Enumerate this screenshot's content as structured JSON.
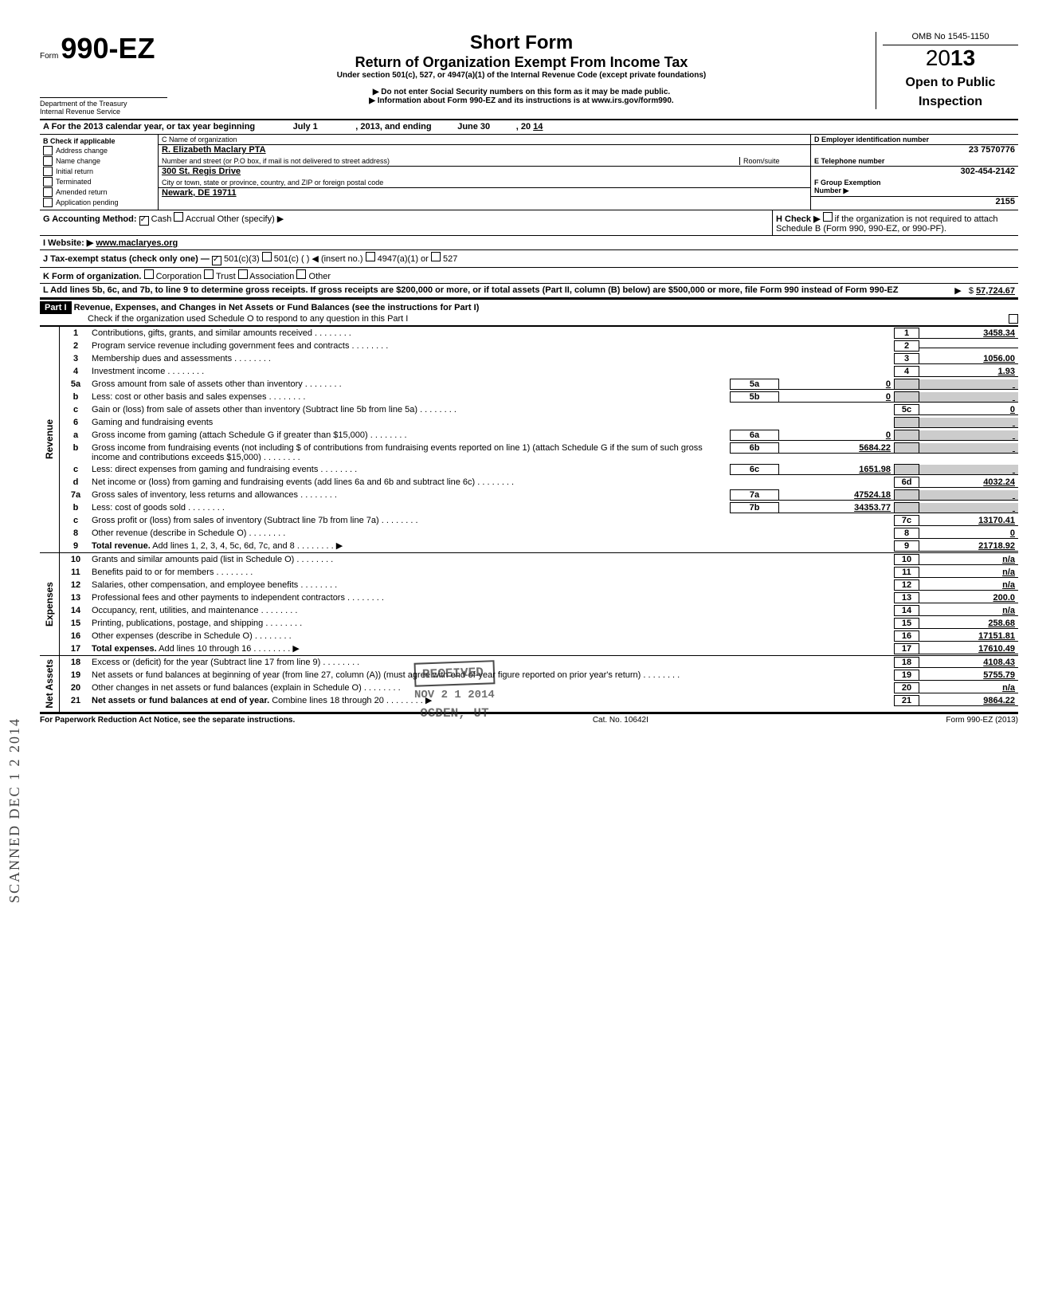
{
  "header": {
    "form_prefix": "Form",
    "form_number": "990-EZ",
    "title": "Short Form",
    "subtitle": "Return of Organization Exempt From Income Tax",
    "under": "Under section 501(c), 527, or 4947(a)(1) of the Internal Revenue Code (except private foundations)",
    "note1": "Do not enter Social Security numbers on this form as it may be made public.",
    "note2": "Information about Form 990-EZ and its instructions is at www.irs.gov/form990.",
    "dept": "Department of the Treasury\nInternal Revenue Service",
    "omb": "OMB No 1545-1150",
    "year_prefix": "20",
    "year_bold": "13",
    "open": "Open to Public",
    "inspection": "Inspection"
  },
  "A": {
    "label": "A For the 2013 calendar year, or tax year beginning",
    "begin": "July 1",
    "mid": ", 2013, and ending",
    "end_month": "June 30",
    "end_year_prefix": ", 20",
    "end_year": "14"
  },
  "B": {
    "label": "B  Check if applicable",
    "items": [
      "Address change",
      "Name change",
      "Initial return",
      "Terminated",
      "Amended return",
      "Application pending"
    ]
  },
  "C": {
    "name_label": "C Name of organization",
    "name": "R. Elizabeth Maclary PTA",
    "street_label": "Number and street (or P.O box, if mail is not delivered to street address)",
    "room_label": "Room/suite",
    "street": "300 St. Regis Drive",
    "city_label": "City or town, state or province, country, and ZIP or foreign postal code",
    "city": "Newark, DE 19711"
  },
  "D": {
    "label": "D Employer identification number",
    "value": "23 7570776"
  },
  "E": {
    "label": "E Telephone number",
    "value": "302-454-2142"
  },
  "F": {
    "label": "F Group Exemption",
    "number_label": "Number ▶",
    "value": "2155"
  },
  "G": {
    "label": "G Accounting Method:",
    "cash": "Cash",
    "accrual": "Accrual",
    "other": "Other (specify) ▶"
  },
  "H": {
    "label": "H Check ▶",
    "text": "if the organization is not required to attach Schedule B (Form 990, 990-EZ, or 990-PF)."
  },
  "I": {
    "label": "I  Website: ▶",
    "value": "www.maclaryes.org"
  },
  "J": {
    "label": "J Tax-exempt status (check only one) —",
    "opt1": "501(c)(3)",
    "opt2": "501(c) (",
    "insert": ") ◀ (insert no.)",
    "opt3": "4947(a)(1) or",
    "opt4": "527"
  },
  "K": {
    "label": "K Form of organization.",
    "corp": "Corporation",
    "trust": "Trust",
    "assoc": "Association",
    "other": "Other"
  },
  "L": {
    "text": "L Add lines 5b, 6c, and 7b, to line 9 to determine gross receipts. If gross receipts are $200,000 or more, or if total assets (Part II, column (B) below) are $500,000 or more, file Form 990 instead of Form 990-EZ",
    "value": "57,724.67"
  },
  "part1": {
    "label": "Part I",
    "title": "Revenue, Expenses, and Changes in Net Assets or Fund Balances (see the instructions for Part I)",
    "check": "Check if the organization used Schedule O to respond to any question in this Part I"
  },
  "revenue_label": "Revenue",
  "expenses_label": "Expenses",
  "netassets_label": "Net Assets",
  "lines": {
    "l1": {
      "n": "1",
      "label": "Contributions, gifts, grants, and similar amounts received",
      "box": "1",
      "val": "3458.34"
    },
    "l2": {
      "n": "2",
      "label": "Program service revenue including government fees and contracts",
      "box": "2",
      "val": ""
    },
    "l3": {
      "n": "3",
      "label": "Membership dues and assessments",
      "box": "3",
      "val": "1056.00"
    },
    "l4": {
      "n": "4",
      "label": "Investment income",
      "box": "4",
      "val": "1.93"
    },
    "l5a": {
      "n": "5a",
      "label": "Gross amount from sale of assets other than inventory",
      "sub": "5a",
      "subval": "0"
    },
    "l5b": {
      "n": "b",
      "label": "Less: cost or other basis and sales expenses",
      "sub": "5b",
      "subval": "0"
    },
    "l5c": {
      "n": "c",
      "label": "Gain or (loss) from sale of assets other than inventory (Subtract line 5b from line 5a)",
      "box": "5c",
      "val": "0"
    },
    "l6": {
      "n": "6",
      "label": "Gaming and fundraising events"
    },
    "l6a": {
      "n": "a",
      "label": "Gross income from gaming (attach Schedule G if greater than $15,000)",
      "sub": "6a",
      "subval": "0"
    },
    "l6b": {
      "n": "b",
      "label": "Gross income from fundraising events (not including  $",
      "label2": "of contributions from fundraising events reported on line 1) (attach Schedule G if the sum of such gross income and contributions exceeds $15,000)",
      "sub": "6b",
      "subval": "5684.22"
    },
    "l6c": {
      "n": "c",
      "label": "Less: direct expenses from gaming and fundraising events",
      "sub": "6c",
      "subval": "1651.98"
    },
    "l6d": {
      "n": "d",
      "label": "Net income or (loss) from gaming and fundraising events (add lines 6a and 6b and subtract line 6c)",
      "box": "6d",
      "val": "4032.24"
    },
    "l7a": {
      "n": "7a",
      "label": "Gross sales of inventory, less returns and allowances",
      "sub": "7a",
      "subval": "47524.18"
    },
    "l7b": {
      "n": "b",
      "label": "Less: cost of goods sold",
      "sub": "7b",
      "subval": "34353.77"
    },
    "l7c": {
      "n": "c",
      "label": "Gross profit or (loss) from sales of inventory (Subtract line 7b from line 7a)",
      "box": "7c",
      "val": "13170.41"
    },
    "l8": {
      "n": "8",
      "label": "Other revenue (describe in Schedule O)",
      "box": "8",
      "val": "0"
    },
    "l9": {
      "n": "9",
      "label": "Total revenue. Add lines 1, 2, 3, 4, 5c, 6d, 7c, and 8",
      "box": "9",
      "val": "21718.92",
      "arrow": true,
      "bold": true
    },
    "l10": {
      "n": "10",
      "label": "Grants and similar amounts paid (list in Schedule O)",
      "box": "10",
      "val": "n/a"
    },
    "l11": {
      "n": "11",
      "label": "Benefits paid to or for members",
      "box": "11",
      "val": "n/a"
    },
    "l12": {
      "n": "12",
      "label": "Salaries, other compensation, and employee benefits",
      "box": "12",
      "val": "n/a"
    },
    "l13": {
      "n": "13",
      "label": "Professional fees and other payments to independent contractors",
      "box": "13",
      "val": "200.0"
    },
    "l14": {
      "n": "14",
      "label": "Occupancy, rent, utilities, and maintenance",
      "box": "14",
      "val": "n/a"
    },
    "l15": {
      "n": "15",
      "label": "Printing, publications, postage, and shipping",
      "box": "15",
      "val": "258.68"
    },
    "l16": {
      "n": "16",
      "label": "Other expenses (describe in Schedule O)",
      "box": "16",
      "val": "17151.81"
    },
    "l17": {
      "n": "17",
      "label": "Total expenses. Add lines 10 through 16",
      "box": "17",
      "val": "17610.49",
      "arrow": true,
      "bold": true
    },
    "l18": {
      "n": "18",
      "label": "Excess or (deficit) for the year (Subtract line 17 from line 9)",
      "box": "18",
      "val": "4108.43"
    },
    "l19": {
      "n": "19",
      "label": "Net assets or fund balances at beginning of year (from line 27, column (A)) (must agree with end-of-year figure reported on prior year's return)",
      "box": "19",
      "val": "5755.79"
    },
    "l20": {
      "n": "20",
      "label": "Other changes in net assets or fund balances (explain in Schedule O)",
      "box": "20",
      "val": "n/a"
    },
    "l21": {
      "n": "21",
      "label": "Net assets or fund balances at end of year. Combine lines 18 through 20",
      "box": "21",
      "val": "9864.22",
      "arrow": true,
      "bold": true
    }
  },
  "footer": {
    "left": "For Paperwork Reduction Act Notice, see the separate instructions.",
    "mid": "Cat. No. 10642I",
    "right": "Form 990-EZ (2013)"
  },
  "stamps": {
    "received": "RECEIVED",
    "received_date": "NOV 2 1 2014",
    "received_loc": "OGDEN, UT",
    "scanned": "SCANNED DEC 1 2 2014"
  }
}
